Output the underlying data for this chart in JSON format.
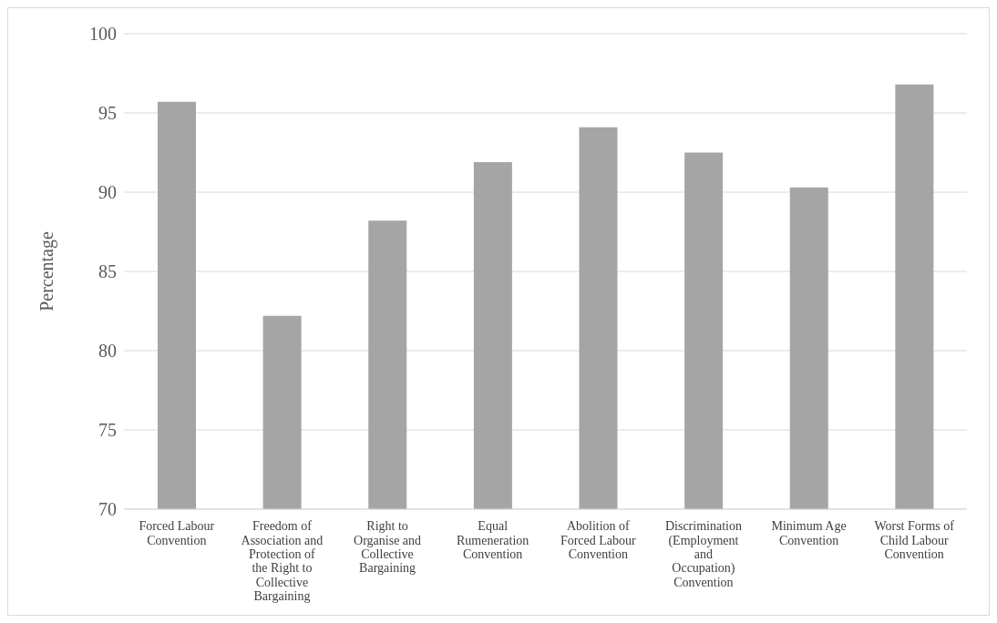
{
  "chart_data": {
    "type": "bar",
    "ylabel": "Percentage",
    "categories": [
      "Forced Labour Convention",
      "Freedom of Association and Protection of the Right to Collective Bargaining",
      "Right to Organise and Collective Bargaining",
      "Equal Rumeneration Convention",
      "Abolition of Forced Labour Convention",
      "Discrimination (Employment and Occupation) Convention",
      "Minimum Age Convention",
      "Worst Forms of Child Labour Convention"
    ],
    "values": [
      95.7,
      82.2,
      88.2,
      91.9,
      94.1,
      92.5,
      90.3,
      96.8
    ],
    "color": "#a5a5a5",
    "ylim": [
      70,
      100
    ],
    "yticks": [
      70,
      75,
      80,
      85,
      90,
      95,
      100
    ],
    "grid": "y"
  }
}
